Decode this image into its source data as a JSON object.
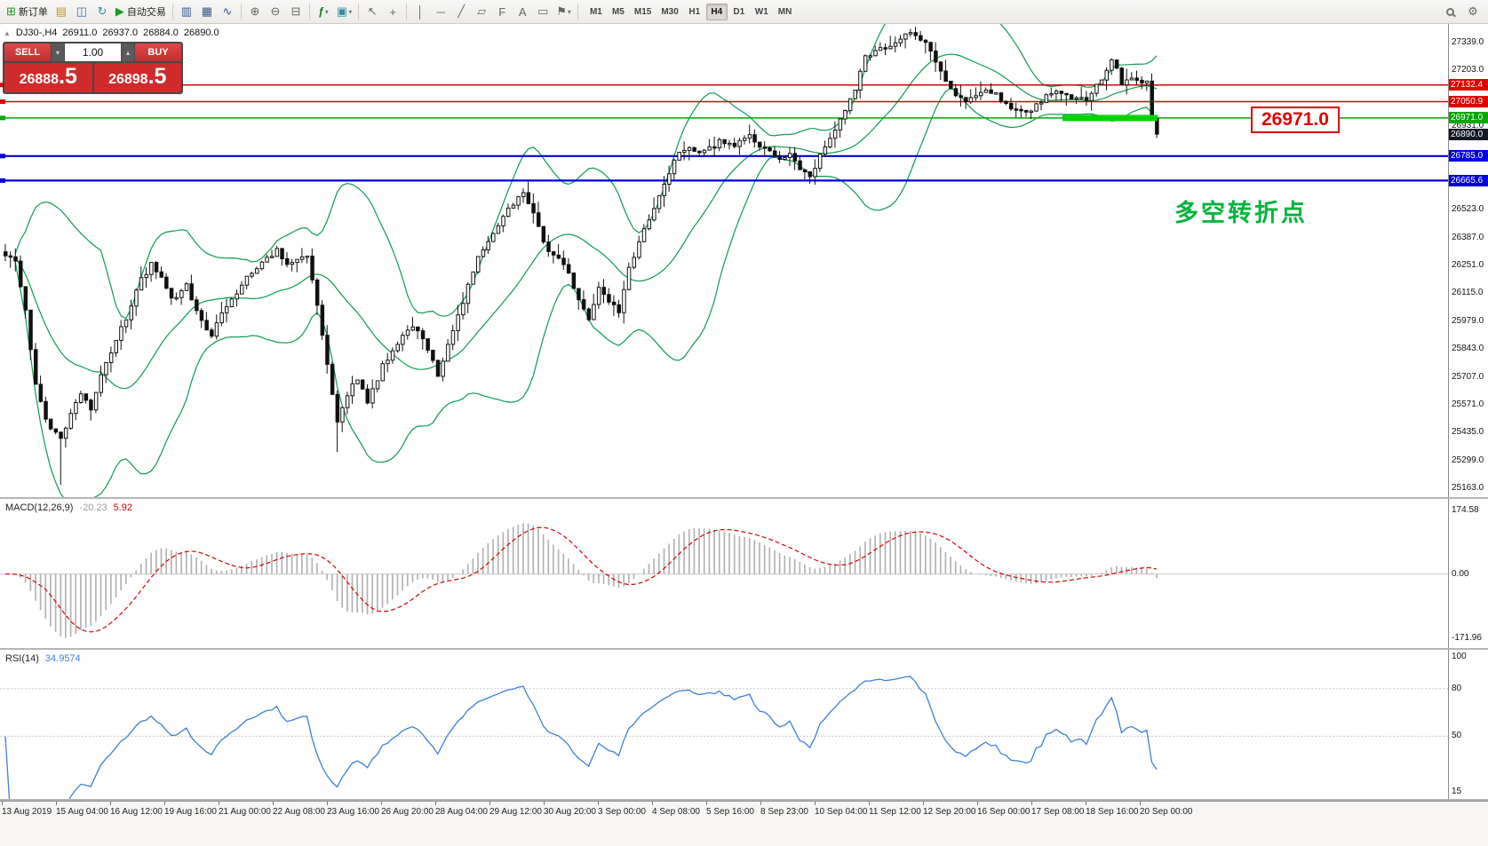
{
  "toolbar": {
    "new_order_label": "新订单",
    "autotrade_label": "自动交易",
    "timeframes": [
      "M1",
      "M5",
      "M15",
      "M30",
      "H1",
      "H4",
      "D1",
      "W1",
      "MN"
    ],
    "active_timeframe": "H4"
  },
  "icons": {
    "collapse": "▲",
    "new_order": "⊞",
    "charts": "▤",
    "market_watch": "◫",
    "refresh": "↻",
    "autotrade_play": "▶",
    "chart_bars": "▥",
    "chart_candles": "▦",
    "chart_line": "∿",
    "zoom_in": "⊕",
    "zoom_out": "⊖",
    "tile": "⊟",
    "indicators": "ƒ",
    "objects": "▣",
    "dropdown": "▾",
    "cursor": "↖",
    "crosshair": "+",
    "vline": "│",
    "hline": "─",
    "trendline": "╱",
    "channel": "▱",
    "fibo": "F",
    "text_tool": "A",
    "label_tool": "▭",
    "shapes": "⚑",
    "settings": "⚙",
    "spinner_up": "▴",
    "spinner_down": "▾"
  },
  "chart": {
    "symbol": "DJ30-,H4",
    "open": "26911.0",
    "high": "26937.0",
    "low": "26884.0",
    "close": "26890.0",
    "trade_panel": {
      "sell_label": "SELL",
      "buy_label": "BUY",
      "volume": "1.00",
      "sell_int": "26888",
      "sell_dec": ".5",
      "buy_int": "26898",
      "buy_dec": ".5"
    },
    "levels": [
      {
        "price": 27132.4,
        "label": "27132.4",
        "color": "#e00000",
        "width": 1.5
      },
      {
        "price": 27050.9,
        "label": "27050.9",
        "color": "#e00000",
        "width": 1.5
      },
      {
        "price": 26971.0,
        "label": "26971.0",
        "color": "#00a800",
        "width": 1.5
      },
      {
        "price": 26785.0,
        "label": "26785.0",
        "color": "#0000dd",
        "width": 2.2
      },
      {
        "price": 26665.6,
        "label": "26665.6",
        "color": "#0000dd",
        "width": 2.2
      }
    ],
    "bid_price": 26890.0,
    "bid_label": "26890.0",
    "bid_label_bg": "#141824",
    "scale_ticks": [
      "27339.0",
      "27203.0",
      "26931.0",
      "26523.0",
      "26387.0",
      "26251.0",
      "26115.0",
      "25979.0",
      "25843.0",
      "25707.0",
      "25571.0",
      "25435.0",
      "25299.0",
      "25163.0"
    ],
    "callout_text": "26971.0",
    "annotation_text": "多空转折点",
    "annotation_color": "#00b43c"
  },
  "macd": {
    "label": "MACD(12,26,9)",
    "main_value": "-20.23",
    "signal_value": "5.92",
    "scale": [
      "174.58",
      "0.00",
      "-171.96"
    ]
  },
  "rsi": {
    "label": "RSI(14)",
    "value": "34.9574",
    "scale": [
      "100",
      "80",
      "50",
      "15"
    ]
  },
  "time_axis": [
    "13 Aug 2019",
    "15 Aug 04:00",
    "16 Aug 12:00",
    "19 Aug 16:00",
    "21 Aug 00:00",
    "22 Aug 08:00",
    "23 Aug 16:00",
    "26 Aug 20:00",
    "28 Aug 04:00",
    "29 Aug 12:00",
    "30 Aug 20:00",
    "3 Sep 00:00",
    "4 Sep 08:00",
    "5 Sep 16:00",
    "8 Sep 23:00",
    "10 Sep 04:00",
    "11 Sep 12:00",
    "12 Sep 20:00",
    "16 Sep 00:00",
    "17 Sep 08:00",
    "18 Sep 16:00",
    "20 Sep 00:00"
  ],
  "chart_data": {
    "type": "candlestick",
    "symbol": "DJ30-",
    "timeframe": "H4",
    "candles_count": 230,
    "y_axis_range": [
      25120,
      27430
    ],
    "price_anchors": [
      [
        0,
        26310
      ],
      [
        2,
        26260
      ],
      [
        4,
        26020
      ],
      [
        6,
        25680
      ],
      [
        8,
        25500
      ],
      [
        11,
        25400
      ],
      [
        13,
        25540
      ],
      [
        15,
        25620
      ],
      [
        17,
        25560
      ],
      [
        19,
        25720
      ],
      [
        21,
        25820
      ],
      [
        24,
        26000
      ],
      [
        27,
        26180
      ],
      [
        29,
        26260
      ],
      [
        31,
        26180
      ],
      [
        33,
        26080
      ],
      [
        36,
        26160
      ],
      [
        38,
        26030
      ],
      [
        41,
        25910
      ],
      [
        44,
        26060
      ],
      [
        47,
        26160
      ],
      [
        50,
        26240
      ],
      [
        54,
        26330
      ],
      [
        56,
        26260
      ],
      [
        60,
        26310
      ],
      [
        62,
        26060
      ],
      [
        64,
        25760
      ],
      [
        66,
        25480
      ],
      [
        68,
        25620
      ],
      [
        70,
        25700
      ],
      [
        72,
        25580
      ],
      [
        75,
        25760
      ],
      [
        78,
        25880
      ],
      [
        81,
        25960
      ],
      [
        84,
        25850
      ],
      [
        86,
        25720
      ],
      [
        88,
        25860
      ],
      [
        91,
        26080
      ],
      [
        94,
        26280
      ],
      [
        97,
        26400
      ],
      [
        100,
        26520
      ],
      [
        103,
        26620
      ],
      [
        105,
        26500
      ],
      [
        108,
        26320
      ],
      [
        111,
        26260
      ],
      [
        114,
        26090
      ],
      [
        116,
        25990
      ],
      [
        118,
        26140
      ],
      [
        120,
        26080
      ],
      [
        122,
        26010
      ],
      [
        124,
        26230
      ],
      [
        127,
        26430
      ],
      [
        130,
        26600
      ],
      [
        133,
        26770
      ],
      [
        136,
        26830
      ],
      [
        139,
        26800
      ],
      [
        142,
        26860
      ],
      [
        145,
        26830
      ],
      [
        148,
        26890
      ],
      [
        151,
        26820
      ],
      [
        154,
        26760
      ],
      [
        156,
        26810
      ],
      [
        158,
        26710
      ],
      [
        160,
        26690
      ],
      [
        163,
        26830
      ],
      [
        166,
        26960
      ],
      [
        169,
        27120
      ],
      [
        171,
        27260
      ],
      [
        174,
        27300
      ],
      [
        177,
        27340
      ],
      [
        180,
        27390
      ],
      [
        183,
        27330
      ],
      [
        186,
        27210
      ],
      [
        188,
        27110
      ],
      [
        191,
        27050
      ],
      [
        194,
        27110
      ],
      [
        197,
        27080
      ],
      [
        200,
        27030
      ],
      [
        203,
        26990
      ],
      [
        206,
        27060
      ],
      [
        209,
        27110
      ],
      [
        212,
        27070
      ],
      [
        215,
        27060
      ],
      [
        218,
        27160
      ],
      [
        220,
        27260
      ],
      [
        222,
        27140
      ],
      [
        225,
        27170
      ],
      [
        227,
        27140
      ],
      [
        228,
        26980
      ],
      [
        229,
        26890
      ]
    ],
    "wick_overrides": [
      [
        11,
        25180
      ],
      [
        66,
        25340
      ]
    ],
    "highlight_zone": {
      "price": 26971.0,
      "x_start_frac": 0.7337,
      "x_end_frac": 0.7994,
      "color": "#00d400"
    },
    "overlays": {
      "bollinger": {
        "period": 20,
        "deviation": 2,
        "color": "#0c9b52"
      }
    },
    "indicators": {
      "macd": {
        "fast": 12,
        "slow": 26,
        "signal": 9
      },
      "rsi_period": 14
    }
  }
}
